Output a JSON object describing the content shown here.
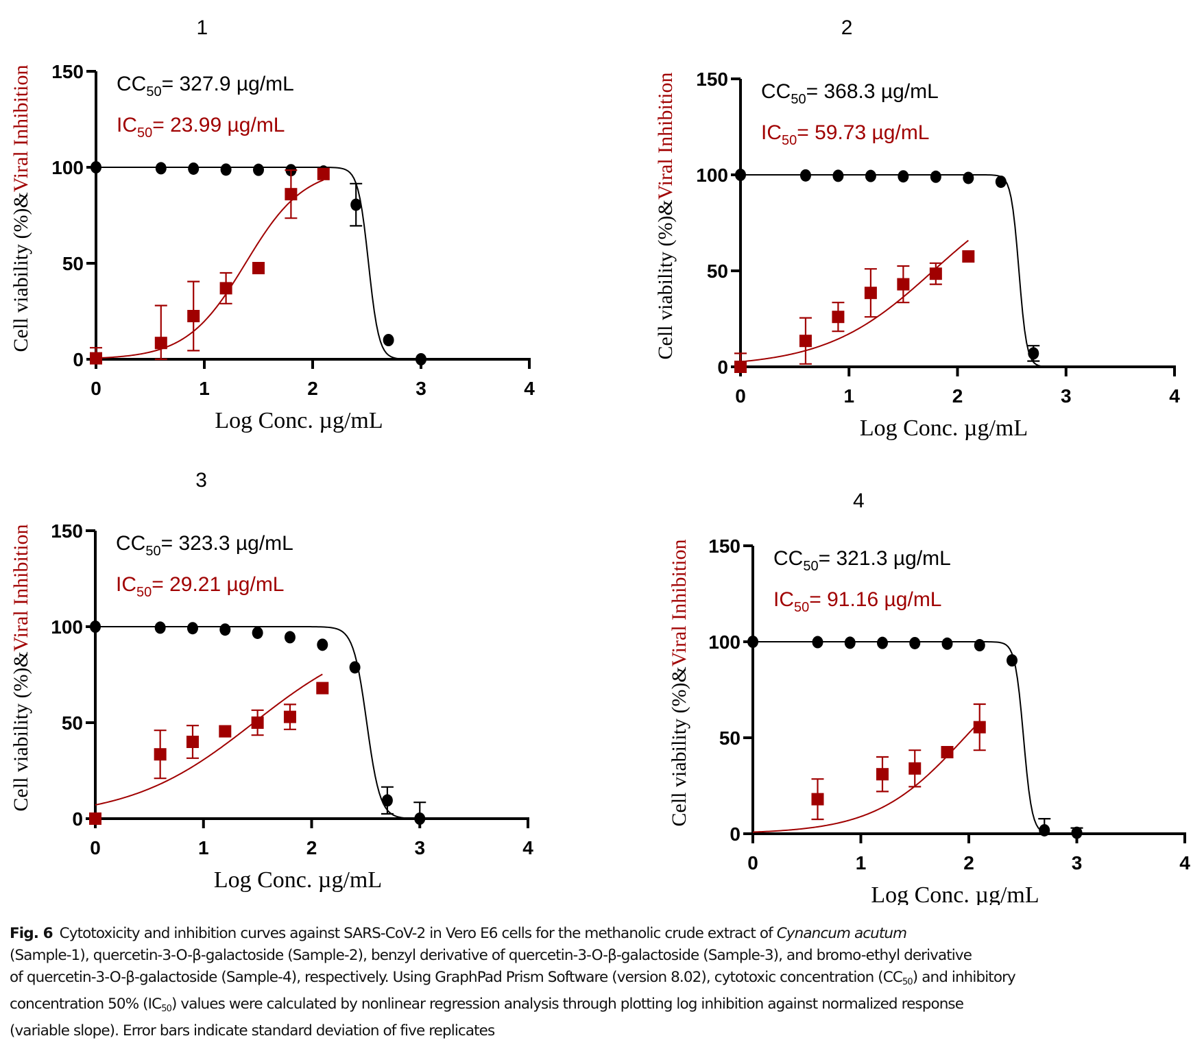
{
  "figure": {
    "panel_count": 4
  },
  "colors": {
    "cytotoxicity": "#000000",
    "inhibition": "#a00000"
  },
  "chart_data": [
    {
      "type": "scatter",
      "panel_label": "1",
      "title": "1",
      "xlabel": "Log Conc. µg/mL",
      "ylabel_parts": [
        "Cell viability (%)&",
        "Viral Inhibition"
      ],
      "xlim": [
        0,
        4
      ],
      "ylim": [
        0,
        150
      ],
      "xticks": [
        0,
        1,
        2,
        3,
        4
      ],
      "yticks": [
        0,
        50,
        100,
        150
      ],
      "annotations": {
        "cc50_prefix": "CC",
        "cc50_sub": "50",
        "cc50_value": "= 327.9 µg/mL",
        "ic50_prefix": "IC",
        "ic50_sub": "50",
        "ic50_value": "= 23.99 µg/mL"
      },
      "series": [
        {
          "name": "Cell viability",
          "marker": "circle",
          "x": [
            0,
            0.6,
            0.9,
            1.2,
            1.5,
            1.8,
            2.1,
            2.4,
            2.7,
            3.0
          ],
          "y": [
            100,
            99.5,
            99.3,
            98.8,
            98.7,
            98.5,
            97.8,
            80.5,
            10,
            0
          ],
          "err": [
            0,
            0,
            0,
            0,
            0,
            0,
            0,
            11,
            0,
            0
          ],
          "fit": {
            "type": "logistic-decreasing",
            "top": 100,
            "bottom": 0,
            "logc50": 2.5157,
            "hill": 9.0,
            "xmin": 0,
            "xmax": 3.0
          }
        },
        {
          "name": "Viral inhibition",
          "marker": "square",
          "x": [
            0,
            0.6,
            0.9,
            1.2,
            1.5,
            1.8,
            2.1
          ],
          "y": [
            0.5,
            8.5,
            22.5,
            37,
            47.5,
            86,
            96.5
          ],
          "err": [
            5.5,
            19.5,
            18,
            8,
            0,
            12.5,
            0
          ],
          "fit": {
            "type": "logistic-increasing",
            "top": 100,
            "bottom": 0,
            "logc50": 1.38,
            "hill": 1.6,
            "xmin": 0,
            "xmax": 2.1
          }
        }
      ]
    },
    {
      "type": "scatter",
      "panel_label": "2",
      "title": "2",
      "xlabel": "Log Conc. µg/mL",
      "ylabel_parts": [
        "Cell viability (%)&",
        "Viral Inhibition"
      ],
      "xlim": [
        0,
        4
      ],
      "ylim": [
        0,
        150
      ],
      "xticks": [
        0,
        1,
        2,
        3,
        4
      ],
      "yticks": [
        0,
        50,
        100,
        150
      ],
      "annotations": {
        "cc50_prefix": "CC",
        "cc50_sub": "50",
        "cc50_value": "= 368.3 µg/mL",
        "ic50_prefix": "IC",
        "ic50_sub": "50",
        "ic50_value": "= 59.73 µg/mL"
      },
      "series": [
        {
          "name": "Cell viability",
          "marker": "circle",
          "x": [
            0,
            0.6,
            0.9,
            1.2,
            1.5,
            1.8,
            2.1,
            2.4,
            2.7
          ],
          "y": [
            100,
            99.7,
            99.5,
            99.4,
            99.2,
            99.0,
            98.4,
            96.4,
            7
          ],
          "err": [
            0,
            0,
            0,
            0,
            0,
            0,
            0,
            0,
            4
          ],
          "fit": {
            "type": "logistic-decreasing",
            "top": 100,
            "bottom": 0,
            "logc50": 2.5662,
            "hill": 12.0,
            "xmin": 0,
            "xmax": 2.85
          }
        },
        {
          "name": "Viral inhibition",
          "marker": "square",
          "x": [
            0,
            0.6,
            0.9,
            1.2,
            1.5,
            1.8,
            2.1
          ],
          "y": [
            0,
            13.5,
            26,
            38.5,
            43,
            48.5,
            57.5
          ],
          "err": [
            7,
            12,
            7.5,
            12.5,
            9.5,
            5.5,
            0
          ],
          "fit": {
            "type": "logistic-increasing",
            "top": 100,
            "bottom": 0,
            "logc50": 1.776,
            "hill": 0.88,
            "xmin": 0,
            "xmax": 2.1
          }
        }
      ]
    },
    {
      "type": "scatter",
      "panel_label": "3",
      "title": "3",
      "xlabel": "Log Conc. µg/mL",
      "ylabel_parts": [
        "Cell viability (%)&",
        "Viral Inhibition"
      ],
      "xlim": [
        0,
        4
      ],
      "ylim": [
        0,
        150
      ],
      "xticks": [
        0,
        1,
        2,
        3,
        4
      ],
      "yticks": [
        0,
        50,
        100,
        150
      ],
      "annotations": {
        "cc50_prefix": "CC",
        "cc50_sub": "50",
        "cc50_value": "= 323.3 µg/mL",
        "ic50_prefix": "IC",
        "ic50_sub": "50",
        "ic50_value": "= 29.21 µg/mL"
      },
      "series": [
        {
          "name": "Cell viability",
          "marker": "circle",
          "x": [
            0,
            0.6,
            0.9,
            1.2,
            1.5,
            1.8,
            2.1,
            2.4,
            2.7,
            3.0
          ],
          "y": [
            100,
            99.5,
            99.2,
            98.5,
            96.8,
            94.5,
            90.6,
            78.8,
            9.5,
            0
          ],
          "err": [
            0,
            0,
            0,
            0,
            0,
            0,
            0,
            0,
            7,
            8.5
          ],
          "fit": {
            "type": "logistic-decreasing",
            "top": 100,
            "bottom": 0,
            "logc50": 2.5096,
            "hill": 7.0,
            "xmin": 0,
            "xmax": 3.0
          }
        },
        {
          "name": "Viral inhibition",
          "marker": "square",
          "x": [
            0,
            0.6,
            0.9,
            1.2,
            1.5,
            1.8,
            2.1
          ],
          "y": [
            0,
            33.5,
            40,
            45.5,
            50,
            53,
            68
          ],
          "err": [
            0,
            12.5,
            8.5,
            0,
            6.5,
            6.5,
            0
          ],
          "fit": {
            "type": "logistic-increasing",
            "top": 100,
            "bottom": 0,
            "logc50": 1.4655,
            "hill": 0.76,
            "xmin": 0,
            "xmax": 2.1
          }
        }
      ]
    },
    {
      "type": "scatter",
      "panel_label": "4",
      "title": "4",
      "xlabel": "Log Conc. µg/mL",
      "ylabel_parts": [
        "Cell viability (%)&",
        "Viral Inhibition"
      ],
      "xlim": [
        0,
        4
      ],
      "ylim": [
        0,
        150
      ],
      "xticks": [
        0,
        1,
        2,
        3,
        4
      ],
      "yticks": [
        0,
        50,
        100,
        150
      ],
      "annotations": {
        "cc50_prefix": "CC",
        "cc50_sub": "50",
        "cc50_value": "= 321.3 µg/mL",
        "ic50_prefix": "IC",
        "ic50_sub": "50",
        "ic50_value": "= 91.16 µg/mL"
      },
      "series": [
        {
          "name": "Cell viability",
          "marker": "circle",
          "x": [
            0,
            0.6,
            0.9,
            1.2,
            1.5,
            1.8,
            2.1,
            2.4,
            2.7,
            3.0
          ],
          "y": [
            100,
            99.8,
            99.5,
            99.4,
            99.3,
            99.0,
            98.2,
            90.3,
            1.8,
            0.5
          ],
          "err": [
            0,
            0,
            0,
            0,
            0,
            0,
            0,
            0,
            6,
            2.5
          ],
          "fit": {
            "type": "logistic-decreasing",
            "top": 100,
            "bottom": 0,
            "logc50": 2.5069,
            "hill": 11.0,
            "xmin": 0,
            "xmax": 2.8
          }
        },
        {
          "name": "Viral inhibition",
          "marker": "square",
          "x": [
            0.6,
            1.2,
            1.5,
            1.8,
            2.1
          ],
          "y": [
            18,
            31,
            34,
            42.5,
            55.5
          ],
          "err": [
            10.5,
            9,
            9.5,
            0,
            12
          ],
          "fit": {
            "type": "logistic-increasing",
            "top": 100,
            "bottom": 0,
            "logc50": 1.96,
            "hill": 1.05,
            "xmin": 0,
            "xmax": 2.1
          }
        }
      ]
    }
  ],
  "caption": {
    "label": "Fig. 6",
    "text_1": "Cytotoxicity and inhibition curves against SARS-CoV-2 in Vero E6 cells for the methanolic crude extract of ",
    "species": "Cynancum acutum",
    "text_2": "(Sample-1), quercetin-3-O-β-galactoside (Sample-2), benzyl derivative of quercetin-3-O-β-galactoside (Sample-3), and bromo-ethyl derivative",
    "text_3": "of quercetin-3-O-β-galactoside (Sample-4), respectively. Using GraphPad Prism Software (version 8.02), cytotoxic concentration (CC",
    "sub_a": "50",
    "text_4": ") and inhibitory",
    "text_5": "concentration 50% (IC",
    "sub_b": "50",
    "text_6": ") values were calculated by nonlinear regression analysis through plotting log inhibition against normalized response",
    "text_7": "(variable slope). Error bars indicate standard deviation of five replicates"
  }
}
